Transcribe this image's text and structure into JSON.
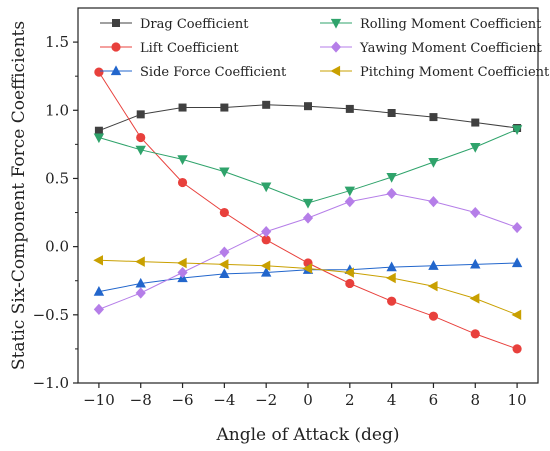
{
  "chart_data": {
    "type": "line",
    "title": "",
    "xlabel": "Angle of Attack (deg)",
    "ylabel": "Static Six-Component Force Coefficients",
    "x": [
      -10,
      -8,
      -6,
      -4,
      -2,
      0,
      2,
      4,
      6,
      8,
      10
    ],
    "x_tick_labels": [
      "−10",
      "−8",
      "−6",
      "−4",
      "−2",
      "0",
      "2",
      "4",
      "6",
      "8",
      "10"
    ],
    "xlim": [
      -11,
      11
    ],
    "ylim": [
      -1.0,
      1.75
    ],
    "y_ticks": [
      -1.0,
      -0.5,
      0.0,
      0.5,
      1.0,
      1.5
    ],
    "y_tick_labels": [
      "−1.0",
      "−0.5",
      "0.0",
      "0.5",
      "1.0",
      "1.5"
    ],
    "grid": false,
    "legend_position": "top",
    "series": [
      {
        "name": "Drag Coefficient",
        "marker": "square",
        "color": "#404040",
        "values": [
          0.85,
          0.97,
          1.02,
          1.02,
          1.04,
          1.03,
          1.01,
          0.98,
          0.95,
          0.91,
          0.87
        ]
      },
      {
        "name": "Lift Coefficient",
        "marker": "circle",
        "color": "#e8403c",
        "values": [
          1.28,
          0.8,
          0.47,
          0.25,
          0.05,
          -0.12,
          -0.27,
          -0.4,
          -0.51,
          -0.64,
          -0.75
        ]
      },
      {
        "name": "Side Force Coefficient",
        "marker": "triangle-up",
        "color": "#2266cc",
        "values": [
          -0.33,
          -0.27,
          -0.23,
          -0.2,
          -0.19,
          -0.17,
          -0.17,
          -0.15,
          -0.14,
          -0.13,
          -0.12
        ]
      },
      {
        "name": "Rolling Moment Coefficient",
        "marker": "triangle-down",
        "color": "#2fa36b",
        "values": [
          0.8,
          0.71,
          0.64,
          0.55,
          0.44,
          0.32,
          0.41,
          0.51,
          0.62,
          0.73,
          0.86
        ]
      },
      {
        "name": "Yawing Moment Coefficient",
        "marker": "diamond",
        "color": "#b57ee8",
        "values": [
          -0.46,
          -0.34,
          -0.19,
          -0.04,
          0.11,
          0.21,
          0.33,
          0.39,
          0.33,
          0.25,
          0.14
        ]
      },
      {
        "name": "Pitching Moment Coefficient",
        "marker": "triangle-left",
        "color": "#c9a000",
        "values": [
          -0.1,
          -0.11,
          -0.12,
          -0.13,
          -0.14,
          -0.16,
          -0.19,
          -0.23,
          -0.29,
          -0.38,
          -0.5
        ]
      }
    ]
  }
}
